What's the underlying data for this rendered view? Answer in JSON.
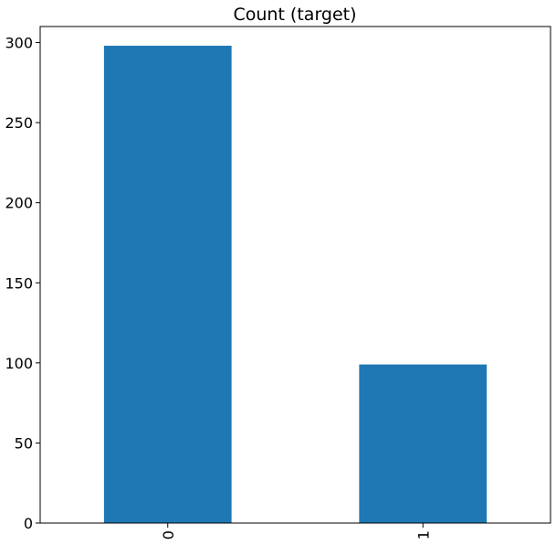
{
  "chart_data": {
    "type": "bar",
    "title": "Count (target)",
    "categories": [
      "0",
      "1"
    ],
    "values": [
      298,
      99
    ],
    "xlabel": "",
    "ylabel": "",
    "ylim": [
      0,
      310
    ],
    "yticks": [
      0,
      50,
      100,
      150,
      200,
      250,
      300
    ],
    "grid": false,
    "legend": "none",
    "bar_color": "#1f77b4"
  }
}
